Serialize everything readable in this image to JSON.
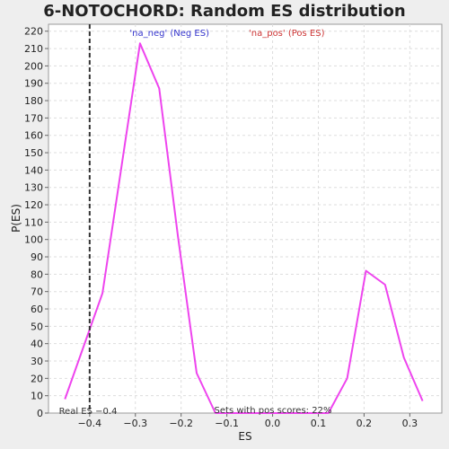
{
  "chart_data": {
    "type": "line",
    "title": "6-NOTOCHORD: Random ES distribution",
    "xlabel": "ES",
    "ylabel": "P(ES)",
    "xlim": [
      -0.49,
      0.37
    ],
    "ylim": [
      0,
      224
    ],
    "x_ticks": [
      -0.4,
      -0.3,
      -0.2,
      -0.1,
      0.0,
      0.1,
      0.2,
      0.3
    ],
    "x_tick_labels": [
      "−0.4",
      "−0.3",
      "−0.2",
      "−0.1",
      "0.0",
      "0.1",
      "0.2",
      "0.3"
    ],
    "y_ticks": [
      0,
      10,
      20,
      30,
      40,
      50,
      60,
      70,
      80,
      90,
      100,
      110,
      120,
      130,
      140,
      150,
      160,
      170,
      180,
      190,
      200,
      210,
      220
    ],
    "grid": true,
    "legend": {
      "placement": "top-center",
      "items": [
        {
          "text": "'na_neg' (Neg ES)",
          "color": "#3333cc"
        },
        {
          "text": "'na_pos' (Pos ES)",
          "color": "#cc3333"
        }
      ]
    },
    "series": [
      {
        "color": "#ee44ee",
        "points": [
          [
            -0.454,
            8
          ],
          [
            -0.372,
            69
          ],
          [
            -0.29,
            213
          ],
          [
            -0.248,
            187
          ],
          [
            -0.207,
            102
          ],
          [
            -0.166,
            23
          ],
          [
            -0.125,
            0
          ],
          [
            -0.084,
            0
          ],
          [
            -0.043,
            0
          ],
          [
            -0.002,
            0
          ],
          [
            0.039,
            0
          ],
          [
            0.08,
            0
          ],
          [
            0.122,
            0
          ],
          [
            0.163,
            20
          ],
          [
            0.204,
            82
          ],
          [
            0.246,
            74
          ],
          [
            0.287,
            32
          ],
          [
            0.328,
            7
          ]
        ]
      }
    ],
    "real_es": {
      "value": -0.4,
      "label": "Real ES −0.4"
    },
    "annotation": "Sets with pos scores: 22%"
  }
}
